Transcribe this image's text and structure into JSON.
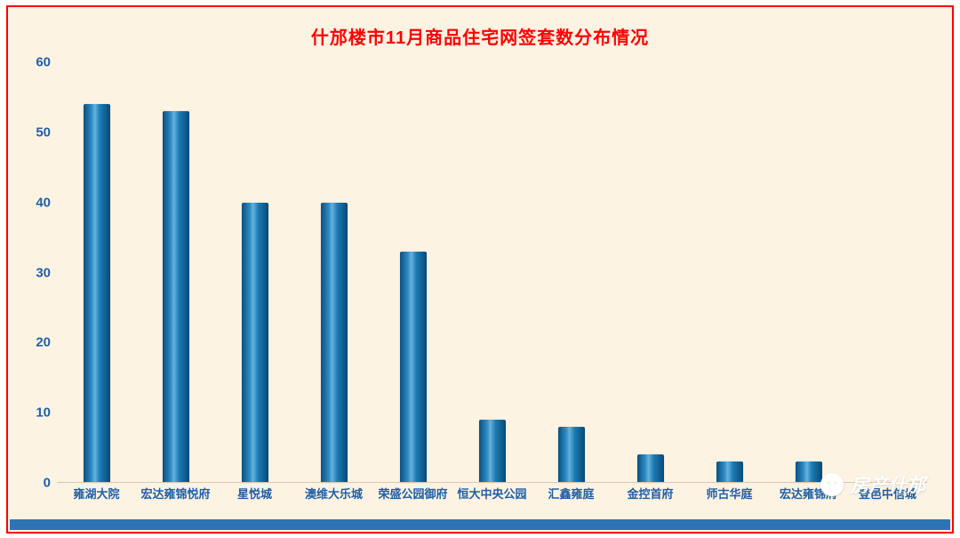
{
  "title": "什邡楼市11月商品住宅网签套数分布情况",
  "watermark": {
    "label": "房产什邡",
    "icon": "wechat-chat-bubble-icon"
  },
  "colors": {
    "background": "#fdf3e3",
    "frame_border": "#ff0000",
    "title_text": "#ff0000",
    "axis_text": "#1f5fa8",
    "bar_main": "#1b7ab2",
    "bottom_strip": "#2e74b5",
    "watermark_text": "#ffffff"
  },
  "chart_data": {
    "type": "bar",
    "title": "什邡楼市11月商品住宅网签套数分布情况",
    "categories": [
      "雍湖大院",
      "宏达雍锦悦府",
      "星悦城",
      "澳维大乐城",
      "荣盛公园御府",
      "恒大中央公园",
      "汇鑫雍庭",
      "金控首府",
      "师古华庭",
      "宏达雍锦府",
      "登邑中信城"
    ],
    "values": [
      54,
      53,
      40,
      40,
      33,
      9,
      8,
      4,
      3,
      3,
      0
    ],
    "xlabel": "",
    "ylabel": "",
    "ylim": [
      0,
      60
    ],
    "yticks": [
      0,
      10,
      20,
      30,
      40,
      50,
      60
    ],
    "grid": false,
    "legend": "none"
  }
}
